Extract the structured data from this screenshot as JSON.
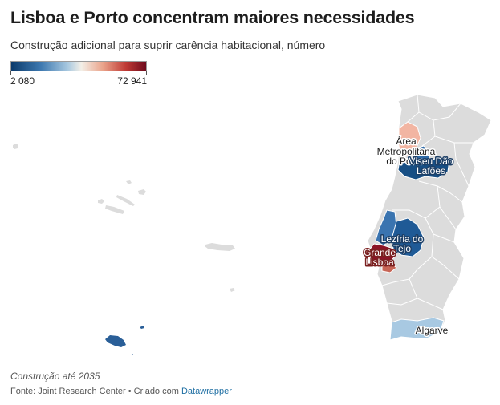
{
  "header": {
    "title": "Lisboa e Porto concentram maiores necessidades",
    "subtitle": "Construção adicional para suprir carência habitacional, número"
  },
  "legend": {
    "min_label": "2 080",
    "max_label": "72 941",
    "min_value": 2080,
    "max_value": 72941,
    "color_low": "#0b3a6b",
    "color_mid": "#f3efe7",
    "color_high": "#6e0a1c"
  },
  "map": {
    "labels": {
      "area_metropolitana_line1": "Área",
      "area_metropolitana_line2": "Metropolitana",
      "area_metropolitana_line3": "do Porto",
      "viseu_dao_lafoes_line1": "Viseu Dão",
      "viseu_dao_lafoes_line2": "Lafões",
      "leziria_line1": "Lezíria do",
      "leziria_line2": "Tejo",
      "grande_lisboa_line1": "Grande",
      "grande_lisboa_line2": "Lisboa",
      "algarve": "Algarve"
    },
    "colors": {
      "no_data": "#dcdcdc",
      "area_metropolitana_porto": "#f2b5a2",
      "viseu_dao_lafoes": "#164e84",
      "cavado_ave": "#2f6aa6",
      "oeste": "#3a74b0",
      "leziria_do_tejo": "#1f5a96",
      "grande_lisboa": "#8b1426",
      "peninsula_setubal": "#c76556",
      "algarve": "#a8c9e2",
      "madeira": "#2a5f98",
      "acores": "#dcdcdc"
    }
  },
  "footer": {
    "notes": "Construção até 2035",
    "source_prefix": "Fonte: Joint Research Center • Criado com",
    "source_link": "Datawrapper"
  }
}
